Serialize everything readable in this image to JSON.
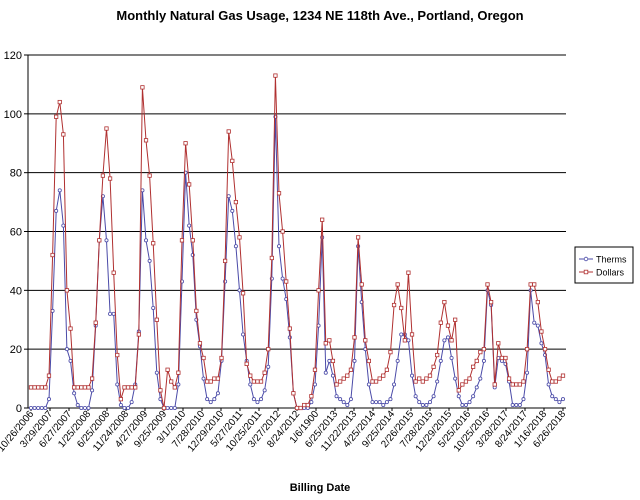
{
  "chart_data": {
    "type": "line",
    "title": "Monthly Natural Gas Usage, 1234 NE 118th Ave., Portland, Oregon",
    "xlabel": "Billing Date",
    "ylabel": "",
    "ylim": [
      0,
      120
    ],
    "yticks": [
      0,
      20,
      40,
      60,
      80,
      100,
      120
    ],
    "grid": "horizontal",
    "legend": "right",
    "tick_labels": [
      "10/26/2006",
      "3/29/2007",
      "6/27/2007",
      "1/25/2008",
      "6/25/2008",
      "11/24/2008",
      "4/27/2009",
      "9/25/2009",
      "3/1/2010",
      "7/28/2010",
      "12/29/2010",
      "5/27/2011",
      "10/25/2011",
      "3/27/2012",
      "8/24/2012",
      "1/6/1900",
      "6/25/2013",
      "11/22/2013",
      "4/25/2014",
      "9/25/2014",
      "2/26/2015",
      "7/28/2015",
      "12/29/2015",
      "5/25/2016",
      "10/25/2016",
      "3/28/2017",
      "8/24/2017",
      "1/16/2018",
      "6/26/2018"
    ],
    "series": [
      {
        "name": "Therms",
        "color": "#4b4ba8",
        "marker": "circle",
        "values": [
          0,
          0,
          0,
          0,
          0,
          3,
          33,
          67,
          74,
          62,
          20,
          16,
          5,
          1,
          0,
          0,
          0,
          6,
          28,
          57,
          72,
          57,
          32,
          32,
          8,
          1,
          0,
          0,
          2,
          8,
          26,
          74,
          57,
          50,
          34,
          12,
          3,
          0,
          0,
          0,
          0,
          8,
          43,
          80,
          62,
          52,
          30,
          21,
          10,
          3,
          2,
          3,
          5,
          16,
          43,
          72,
          67,
          55,
          40,
          25,
          16,
          8,
          3,
          2,
          3,
          6,
          14,
          44,
          99,
          55,
          44,
          37,
          24,
          5,
          0,
          0,
          0,
          0,
          2,
          8,
          28,
          58,
          12,
          16,
          11,
          4,
          3,
          2,
          1,
          3,
          16,
          55,
          36,
          20,
          8,
          2,
          2,
          2,
          1,
          2,
          3,
          8,
          16,
          25,
          25,
          23,
          11,
          4,
          2,
          1,
          1,
          2,
          4,
          9,
          16,
          23,
          24,
          17,
          10,
          4,
          1,
          1,
          2,
          4,
          7,
          10,
          16,
          40,
          35,
          7,
          17,
          16,
          15,
          9,
          1,
          1,
          1,
          3,
          12,
          40,
          29,
          28,
          22,
          18,
          8,
          4,
          3,
          2,
          3
        ]
      },
      {
        "name": "Dollars",
        "color": "#b03030",
        "marker": "square",
        "values": [
          7,
          7,
          7,
          7,
          7,
          11,
          52,
          99,
          104,
          93,
          40,
          27,
          7,
          7,
          7,
          7,
          7,
          10,
          29,
          57,
          79,
          95,
          78,
          46,
          18,
          3,
          7,
          7,
          7,
          7,
          25,
          109,
          91,
          79,
          56,
          30,
          6,
          0,
          13,
          9,
          7,
          12,
          57,
          90,
          76,
          57,
          33,
          22,
          17,
          9,
          9,
          10,
          10,
          17,
          50,
          94,
          84,
          70,
          58,
          39,
          15,
          11,
          9,
          9,
          9,
          12,
          20,
          51,
          113,
          73,
          60,
          43,
          27,
          5,
          0,
          0,
          1,
          1,
          4,
          13,
          40,
          64,
          22,
          23,
          16,
          8,
          9,
          10,
          11,
          13,
          24,
          58,
          42,
          23,
          16,
          9,
          9,
          10,
          11,
          13,
          19,
          35,
          42,
          34,
          23,
          46,
          25,
          9,
          10,
          9,
          10,
          11,
          14,
          18,
          29,
          36,
          28,
          23,
          30,
          6,
          8,
          9,
          10,
          14,
          16,
          19,
          20,
          42,
          36,
          8,
          22,
          17,
          17,
          10,
          8,
          8,
          8,
          9,
          20,
          42,
          42,
          36,
          26,
          20,
          13,
          9,
          9,
          10,
          11
        ]
      }
    ]
  }
}
